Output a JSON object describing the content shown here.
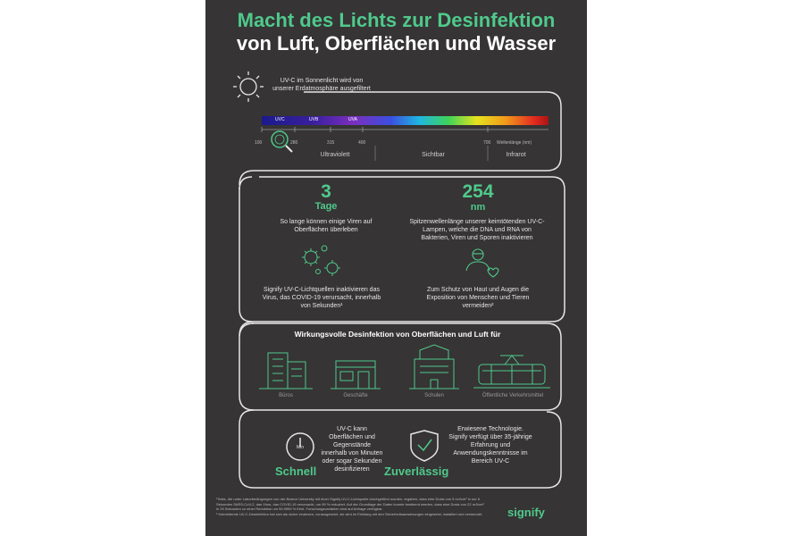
{
  "title_line1": "Macht des Lichts zur Desinfektion",
  "title_line2": "von Luft, Oberflächen und Wasser",
  "sun_text": "UV-C im Sonnenlicht wird von unserer Erdatmosphäre ausgefiltert",
  "spectrum": {
    "bands": [
      "UVC",
      "UVB",
      "UVA"
    ],
    "ticks": [
      "100",
      "280",
      "315",
      "400",
      "700"
    ],
    "axis_label": "Wellenlänge (nm)",
    "regions": [
      "Ultraviolett",
      "Sichtbar",
      "Infrarot"
    ]
  },
  "stats": {
    "days_value": "3",
    "days_unit": "Tage",
    "days_text": "So lange können einige Viren auf Oberflächen überleben",
    "nm_value": "254",
    "nm_unit": "nm",
    "nm_text": "Spitzenwellenlänge unserer keimtötenden UV-C-Lampen, welche die DNA und RNA von Bakterien, Viren und Sporen inaktivieren",
    "virus_text": "Signify UV-C-Lichtquellen inaktivieren das Virus, das COVID-19 verursacht, innerhalb von Sekunden¹",
    "protect_text": "Zum Schutz von Haut und Augen die Exposition von Menschen und Tieren vermeiden²"
  },
  "applications": {
    "heading": "Wirkungsvolle Desinfektion von Oberflächen und Luft für",
    "items": [
      "Büros",
      "Geschäfte",
      "Schulen",
      "Öffentliche Verkehrsmittel"
    ]
  },
  "benefits": {
    "clock_label": "Min",
    "fast_title": "Schnell",
    "fast_text": "UV-C kann Oberflächen und Gegenstände innerhalb von Minuten oder sogar Sekunden desinfizieren",
    "reliable_title": "Zuverlässig",
    "reliable_text": "Erwiesene Technologie. Signify verfügt über 35-jährige Erfahrung und Anwendungskenntnisse im Bereich UV-C"
  },
  "footnotes": {
    "note1": "¹Tests, die unter Laborbedingungen von der Boston University mit einer Signify UV-C-Lichtquelle durchgeführt wurden, ergaben, dass eine Dosis von 5 mJ/cm² in nur 6 Sekunden SARS-CoV-2, das Virus, das COVID-19 verursacht, um 99 % reduziert. Auf der Grundlage der Daten konnte bestimmt werden, dass eine Dosis von 22 mJ/cm² in 25 Sekunden zu einer Reduktion um 99,9999 % führt. Forschungsvariablen sind auf Anfrage verfügbar.",
    "note2": "² Keimtötende UV-C-Desinfektion hat sich als sicher erwiesen, vorausgesetzt, sie wird im Einklang mit den Sicherheitsanweisungen eingesetzt, installiert und verwendet."
  },
  "brand": "signify",
  "colors": {
    "background": "#363434",
    "accent": "#4fc98c",
    "text": "#ffffff"
  }
}
